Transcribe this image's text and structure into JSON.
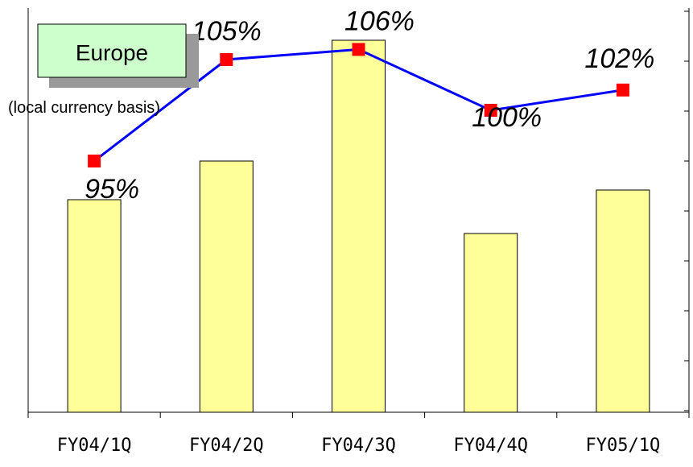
{
  "chart_data": {
    "type": "bar",
    "categories": [
      "FY04/1Q",
      "FY04/2Q",
      "FY04/3Q",
      "FY04/4Q",
      "FY05/1Q"
    ],
    "bar_values": [
      44,
      52,
      77,
      37,
      46
    ],
    "bar_color": "#ffff99",
    "line": {
      "values": [
        95,
        105,
        106,
        100,
        102
      ],
      "labels": [
        "95%",
        "105%",
        "106%",
        "100%",
        "102%"
      ],
      "line_color": "#0000ff",
      "marker_color": "#ff0000"
    },
    "region_label": "Europe",
    "note": "(local currency basis)",
    "grid": false
  }
}
